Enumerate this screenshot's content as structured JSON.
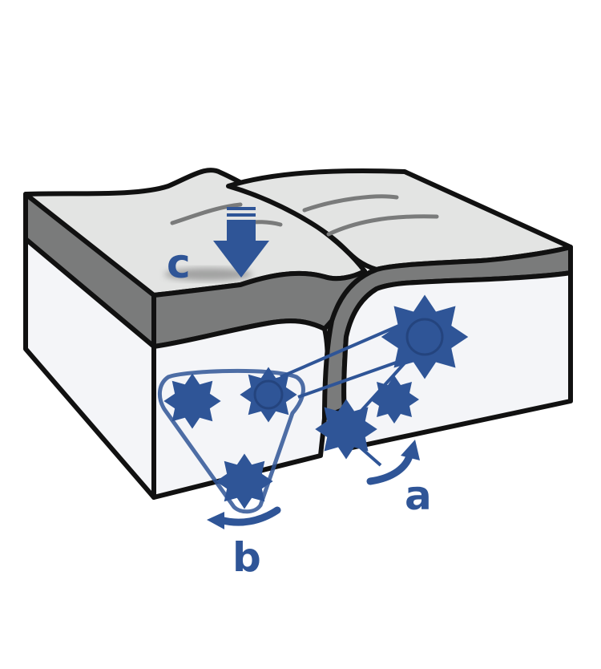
{
  "labels": {
    "a": "a",
    "b": "b",
    "c": "c"
  },
  "colors": {
    "accent_blue": "#2f5597",
    "outline": "#111111",
    "top_surface": "#e3e4e3",
    "crust_band": "#7a7b7b",
    "side_face": "#f4f5f8"
  }
}
